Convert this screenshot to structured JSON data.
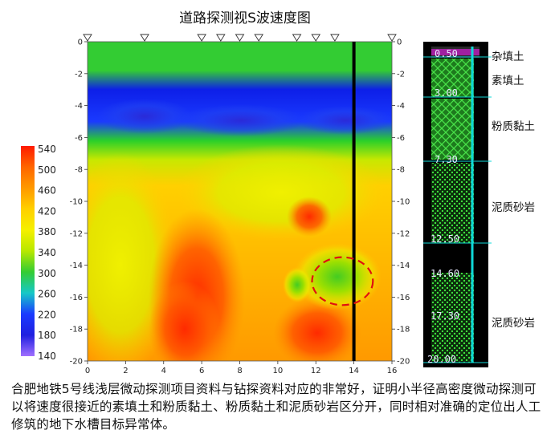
{
  "title": "道路探测视S波速度图",
  "chart_data": {
    "type": "heatmap",
    "title": "道路探测视S波速度图",
    "xlim": [
      0,
      16
    ],
    "ylim": [
      -20,
      0
    ],
    "x_ticks": [
      "0",
      "2",
      "4",
      "6",
      "8",
      "10",
      "12",
      "14",
      "16"
    ],
    "y_ticks": [
      "0",
      "-2",
      "-4",
      "-6",
      "-8",
      "-10",
      "-12",
      "-14",
      "-16",
      "-18",
      "-20"
    ],
    "colorbar_ticks": [
      "540",
      "500",
      "460",
      "420",
      "380",
      "340",
      "300",
      "260",
      "220",
      "180",
      "140"
    ],
    "colorbar_range": [
      140,
      540
    ],
    "colorbar_colors": [
      "#ff1a00",
      "#ff6600",
      "#ff9900",
      "#ffd000",
      "#f5f000",
      "#b8e800",
      "#33cc33",
      "#16c8c8",
      "#1a3aff",
      "#2020e0",
      "#a070ff"
    ],
    "survey_points_x": [
      0,
      3,
      6,
      7,
      8,
      9,
      11,
      12,
      13,
      16
    ],
    "borehole_x": 14,
    "anomaly": {
      "x": 13.4,
      "y": -15,
      "rx": 1.6,
      "ry": 1.5,
      "color": "#e01010"
    },
    "layers": [
      {
        "y_top": 0,
        "y_bottom": -3.2,
        "v": 300
      },
      {
        "y_top": -3.2,
        "y_bottom": -6.2,
        "v": 230
      },
      {
        "y_top": -6.2,
        "y_bottom": -8.5,
        "v": 320
      },
      {
        "y_top": -8.5,
        "y_bottom": -20,
        "v": 440
      }
    ]
  },
  "borehole": {
    "depth_labels": [
      "0.50",
      "3.00",
      "7.30",
      "12.50",
      "14.60",
      "17.30",
      "20.00"
    ],
    "strata": [
      "杂填土",
      "素填土",
      "粉质黏土",
      "泥质砂岩",
      "泥质砂岩"
    ]
  },
  "caption": "合肥地铁5号线浅层微动探测项目资料与钻探资料对应的非常好，证明小半径高密度微动探测可以将速度很接近的素填土和粉质黏土、粉质黏土和泥质砂岩区分开，同时相对准确的定位出人工修筑的地下水槽目标异常体。"
}
